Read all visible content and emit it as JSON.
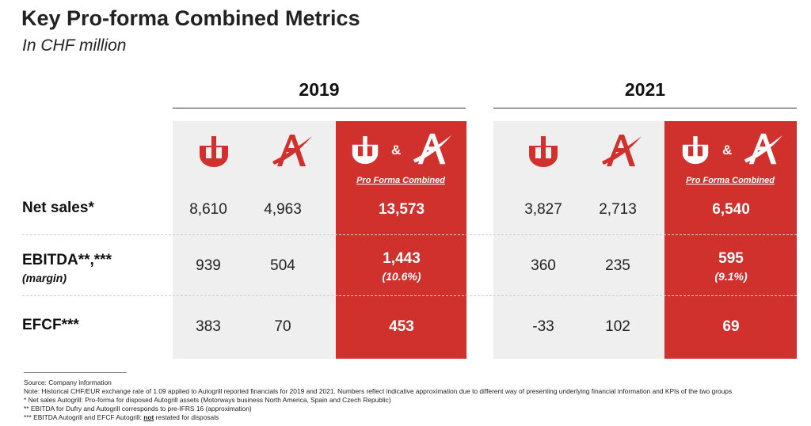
{
  "header": {
    "title": "Key Pro-forma Combined Metrics",
    "subtitle": "In CHF million"
  },
  "columns": {
    "year_2019": "2019",
    "year_2021": "2021",
    "combined_label": "Pro Forma Combined",
    "ampersand": "&"
  },
  "rows": {
    "net_sales": {
      "label": "Net sales*",
      "y2019": {
        "dufry": "8,610",
        "autogrill": "4,963",
        "combined": "13,573"
      },
      "y2021": {
        "dufry": "3,827",
        "autogrill": "2,713",
        "combined": "6,540"
      }
    },
    "ebitda": {
      "label": "EBITDA**,***",
      "sublabel": "(margin)",
      "y2019": {
        "dufry": "939",
        "autogrill": "504",
        "combined": "1,443",
        "margin": "(10.6%)"
      },
      "y2021": {
        "dufry": "360",
        "autogrill": "235",
        "combined": "595",
        "margin": "(9.1%)"
      }
    },
    "efcf": {
      "label": "EFCF***",
      "y2019": {
        "dufry": "383",
        "autogrill": "70",
        "combined": "453"
      },
      "y2021": {
        "dufry": "-33",
        "autogrill": "102",
        "combined": "69"
      }
    }
  },
  "logos": {
    "dufry": "dufry-logo-icon",
    "autogrill": "autogrill-logo-icon"
  },
  "colors": {
    "accent_red": "#d0312d",
    "panel_grey": "#efefef"
  },
  "footnotes": {
    "source": "Source: Company information",
    "note": "Note: Historical CHF/EUR exchange rate of 1.09 applied to Autogrill reported financials for 2019 and 2021. Numbers reflect indicative approximation due to different way of presenting underlying financial information and KPIs of the two groups",
    "fn1": "* Net sales Autogrill: Pro-forma for disposed Autogrill assets (Motorways business North America, Spain and Czech Republic)",
    "fn2": "** EBITDA for Dufry and Autogrill corresponds to pre-IFRS 16 (approximation)",
    "fn3_pre": "*** EBITDA Autogrill and EFCF Autogrill: ",
    "fn3_em": "not",
    "fn3_post": " restated for disposals"
  }
}
